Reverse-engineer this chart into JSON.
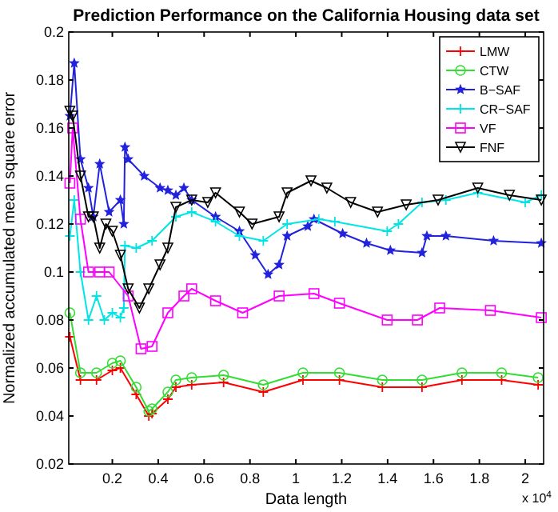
{
  "chart_data": {
    "type": "line",
    "title": "Prediction Performance on the California Housing data set",
    "xlabel": "Data length",
    "ylabel": "Normalized accumulated mean square error",
    "annotations": [
      "x 10$^{4}$"
    ],
    "xlim": [
      0.01,
      2.08
    ],
    "ylim": [
      0.02,
      0.2
    ],
    "xticks": [
      0.2,
      0.4,
      0.6,
      0.8,
      1,
      1.2,
      1.4,
      1.6,
      1.8,
      2
    ],
    "yticks": [
      0.02,
      0.04,
      0.06,
      0.08,
      0.1,
      0.12,
      0.14,
      0.16,
      0.18,
      0.2
    ],
    "grid": false,
    "legend": "top right",
    "line_style": "solid",
    "series": [
      {
        "name": "LMW",
        "color": "#ff0000",
        "marker": "cross",
        "x": [
          0.015,
          0.061,
          0.131,
          0.2,
          0.235,
          0.304,
          0.359,
          0.373,
          0.442,
          0.477,
          0.546,
          0.685,
          0.858,
          1.031,
          1.19,
          1.377,
          1.55,
          1.724,
          1.897,
          2.056
        ],
        "values": [
          0.073,
          0.055,
          0.055,
          0.059,
          0.06,
          0.049,
          0.04,
          0.041,
          0.047,
          0.052,
          0.053,
          0.054,
          0.05,
          0.055,
          0.055,
          0.052,
          0.052,
          0.055,
          0.055,
          0.053
        ]
      },
      {
        "name": "CTW",
        "color": "#33dd33",
        "marker": "circle",
        "x": [
          0.015,
          0.061,
          0.131,
          0.2,
          0.235,
          0.304,
          0.359,
          0.373,
          0.442,
          0.477,
          0.546,
          0.685,
          0.858,
          1.031,
          1.19,
          1.377,
          1.55,
          1.724,
          1.897,
          2.056
        ],
        "values": [
          0.083,
          0.058,
          0.058,
          0.062,
          0.063,
          0.052,
          0.042,
          0.043,
          0.05,
          0.055,
          0.056,
          0.057,
          0.053,
          0.058,
          0.058,
          0.055,
          0.055,
          0.058,
          0.058,
          0.056
        ]
      },
      {
        "name": "B−SAF",
        "color": "#2222dd",
        "marker": "star",
        "x": [
          0.015,
          0.034,
          0.061,
          0.096,
          0.117,
          0.145,
          0.186,
          0.235,
          0.25,
          0.255,
          0.269,
          0.339,
          0.408,
          0.442,
          0.477,
          0.512,
          0.546,
          0.65,
          0.754,
          0.823,
          0.879,
          0.927,
          0.962,
          1.052,
          1.079,
          1.204,
          1.308,
          1.412,
          1.55,
          1.571,
          1.654,
          1.862,
          2.07
        ],
        "values": [
          0.165,
          0.187,
          0.147,
          0.135,
          0.123,
          0.145,
          0.125,
          0.13,
          0.12,
          0.152,
          0.147,
          0.14,
          0.135,
          0.134,
          0.132,
          0.135,
          0.13,
          0.123,
          0.117,
          0.107,
          0.099,
          0.103,
          0.115,
          0.119,
          0.122,
          0.116,
          0.112,
          0.109,
          0.108,
          0.115,
          0.115,
          0.113,
          0.112
        ]
      },
      {
        "name": "CR−SAF",
        "color": "#00e5e5",
        "marker": "cross",
        "x": [
          0.015,
          0.034,
          0.061,
          0.096,
          0.131,
          0.165,
          0.2,
          0.235,
          0.25,
          0.255,
          0.304,
          0.373,
          0.477,
          0.546,
          0.65,
          0.754,
          0.858,
          0.962,
          1.1,
          1.17,
          1.398,
          1.447,
          1.55,
          1.654,
          1.793,
          2.0,
          2.07
        ],
        "values": [
          0.115,
          0.13,
          0.1,
          0.08,
          0.09,
          0.08,
          0.083,
          0.081,
          0.085,
          0.111,
          0.11,
          0.113,
          0.123,
          0.125,
          0.121,
          0.115,
          0.113,
          0.12,
          0.122,
          0.121,
          0.117,
          0.12,
          0.129,
          0.13,
          0.133,
          0.129,
          0.132
        ]
      },
      {
        "name": "VF",
        "color": "#ff00ff",
        "marker": "square",
        "x": [
          0.015,
          0.027,
          0.061,
          0.096,
          0.145,
          0.186,
          0.269,
          0.325,
          0.373,
          0.442,
          0.512,
          0.546,
          0.65,
          0.768,
          0.927,
          1.079,
          1.19,
          1.398,
          1.53,
          1.627,
          1.848,
          2.07
        ],
        "values": [
          0.137,
          0.16,
          0.122,
          0.1,
          0.1,
          0.1,
          0.09,
          0.068,
          0.069,
          0.083,
          0.09,
          0.093,
          0.088,
          0.083,
          0.09,
          0.091,
          0.087,
          0.08,
          0.08,
          0.085,
          0.084,
          0.081
        ]
      },
      {
        "name": "FNF",
        "color": "#000000",
        "marker": "triangle",
        "x": [
          0.015,
          0.027,
          0.061,
          0.096,
          0.117,
          0.145,
          0.172,
          0.2,
          0.235,
          0.269,
          0.318,
          0.359,
          0.408,
          0.442,
          0.477,
          0.546,
          0.616,
          0.65,
          0.754,
          0.809,
          0.927,
          0.962,
          1.066,
          1.135,
          1.239,
          1.356,
          1.481,
          1.62,
          1.793,
          1.931,
          2.07
        ],
        "values": [
          0.167,
          0.165,
          0.14,
          0.123,
          0.123,
          0.11,
          0.12,
          0.117,
          0.107,
          0.093,
          0.085,
          0.093,
          0.103,
          0.11,
          0.127,
          0.13,
          0.129,
          0.133,
          0.125,
          0.12,
          0.123,
          0.133,
          0.138,
          0.135,
          0.129,
          0.125,
          0.128,
          0.13,
          0.135,
          0.132,
          0.13
        ]
      }
    ]
  }
}
